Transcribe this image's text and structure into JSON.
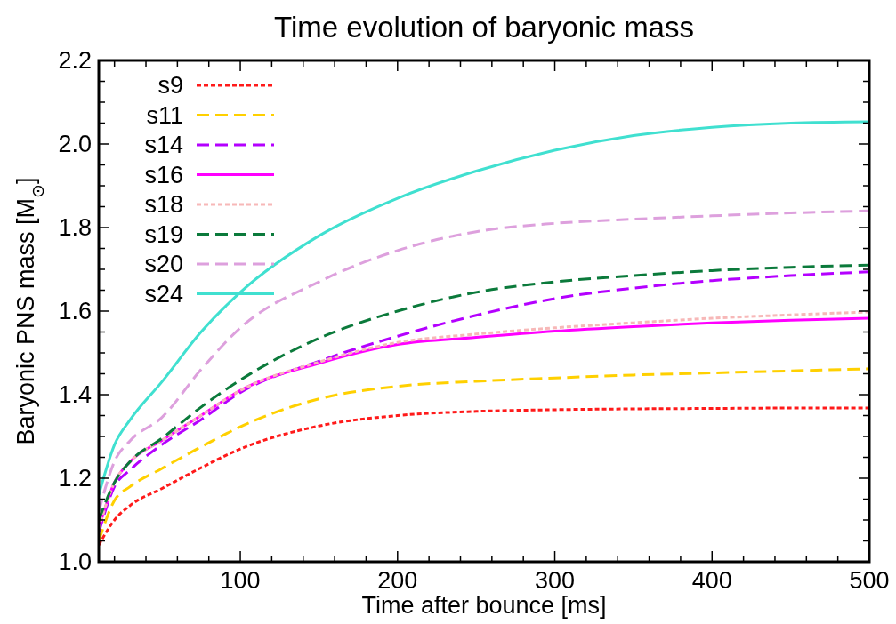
{
  "chart_data": {
    "type": "line",
    "title": "Time evolution of baryonic mass",
    "xlabel": "Time after bounce [ms]",
    "ylabel": "Baryonic PNS mass [M$_{⊙}$]",
    "x": [
      10,
      20,
      30,
      50,
      75,
      100,
      150,
      200,
      250,
      300,
      350,
      400,
      450,
      500
    ],
    "xlim": [
      10,
      500
    ],
    "xticks": [
      {
        "value": 20,
        "label": null
      },
      {
        "value": 40,
        "label": null
      },
      {
        "value": 60,
        "label": null
      },
      {
        "value": 80,
        "label": null
      },
      100,
      {
        "value": 120,
        "label": null
      },
      {
        "value": 140,
        "label": null
      },
      {
        "value": 160,
        "label": null
      },
      {
        "value": 180,
        "label": null
      },
      200,
      {
        "value": 220,
        "label": null
      },
      {
        "value": 240,
        "label": null
      },
      {
        "value": 260,
        "label": null
      },
      {
        "value": 280,
        "label": null
      },
      300,
      {
        "value": 320,
        "label": null
      },
      {
        "value": 340,
        "label": null
      },
      {
        "value": 360,
        "label": null
      },
      {
        "value": 380,
        "label": null
      },
      400,
      {
        "value": 420,
        "label": null
      },
      {
        "value": 440,
        "label": null
      },
      {
        "value": 460,
        "label": null
      },
      {
        "value": 480,
        "label": null
      },
      500
    ],
    "ylim": [
      1.0,
      2.2
    ],
    "yticks": [
      {
        "value": 1.0,
        "label": "1.0"
      },
      {
        "value": 1.05,
        "label": null
      },
      {
        "value": 1.1,
        "label": null
      },
      {
        "value": 1.15,
        "label": null
      },
      {
        "value": 1.2,
        "label": "1.2"
      },
      {
        "value": 1.25,
        "label": null
      },
      {
        "value": 1.3,
        "label": null
      },
      {
        "value": 1.35,
        "label": null
      },
      {
        "value": 1.4,
        "label": "1.4"
      },
      {
        "value": 1.45,
        "label": null
      },
      {
        "value": 1.5,
        "label": null
      },
      {
        "value": 1.55,
        "label": null
      },
      {
        "value": 1.6,
        "label": "1.6"
      },
      {
        "value": 1.65,
        "label": null
      },
      {
        "value": 1.7,
        "label": null
      },
      {
        "value": 1.75,
        "label": null
      },
      {
        "value": 1.8,
        "label": "1.8"
      },
      {
        "value": 1.85,
        "label": null
      },
      {
        "value": 1.9,
        "label": null
      },
      {
        "value": 1.95,
        "label": null
      },
      {
        "value": 2.0,
        "label": "2.0"
      },
      {
        "value": 2.05,
        "label": null
      },
      {
        "value": 2.1,
        "label": null
      },
      {
        "value": 2.15,
        "label": null
      },
      {
        "value": 2.2,
        "label": "2.2"
      }
    ],
    "grid": false,
    "legend": "top left",
    "series": [
      {
        "name": "s9",
        "color": "#ff1a1a",
        "line_style": "dotted",
        "values": [
          1.04,
          1.1,
          1.135,
          1.175,
          1.225,
          1.27,
          1.325,
          1.35,
          1.36,
          1.364,
          1.366,
          1.367,
          1.368,
          1.368
        ]
      },
      {
        "name": "s11",
        "color": "#ffd000",
        "line_style": "dashed",
        "values": [
          1.05,
          1.147,
          1.18,
          1.223,
          1.275,
          1.323,
          1.39,
          1.42,
          1.432,
          1.44,
          1.447,
          1.452,
          1.457,
          1.462
        ]
      },
      {
        "name": "s14",
        "color": "#b400ff",
        "line_style": "dashed",
        "values": [
          1.07,
          1.18,
          1.22,
          1.28,
          1.34,
          1.405,
          1.48,
          1.54,
          1.59,
          1.63,
          1.655,
          1.673,
          1.685,
          1.694
        ]
      },
      {
        "name": "s16",
        "color": "#ff00ff",
        "line_style": "solid",
        "values": [
          1.08,
          1.19,
          1.24,
          1.29,
          1.35,
          1.41,
          1.475,
          1.52,
          1.537,
          1.552,
          1.563,
          1.572,
          1.578,
          1.583
        ]
      },
      {
        "name": "s18",
        "color": "#f7b8b8",
        "line_style": "dotted",
        "values": [
          1.08,
          1.19,
          1.24,
          1.29,
          1.35,
          1.41,
          1.478,
          1.525,
          1.545,
          1.56,
          1.572,
          1.583,
          1.591,
          1.598
        ]
      },
      {
        "name": "s19",
        "color": "#0b7a3b",
        "line_style": "dashed",
        "values": [
          1.1,
          1.19,
          1.24,
          1.295,
          1.37,
          1.435,
          1.535,
          1.6,
          1.645,
          1.67,
          1.685,
          1.697,
          1.705,
          1.71
        ]
      },
      {
        "name": "s20",
        "color": "#dda0dd",
        "line_style": "dashed",
        "values": [
          1.12,
          1.24,
          1.29,
          1.345,
          1.46,
          1.56,
          1.67,
          1.745,
          1.79,
          1.81,
          1.82,
          1.828,
          1.835,
          1.84
        ]
      },
      {
        "name": "s24",
        "color": "#40e0d0",
        "line_style": "solid",
        "values": [
          1.16,
          1.28,
          1.34,
          1.43,
          1.55,
          1.645,
          1.78,
          1.87,
          1.935,
          1.985,
          2.02,
          2.04,
          2.05,
          2.053
        ]
      }
    ]
  }
}
